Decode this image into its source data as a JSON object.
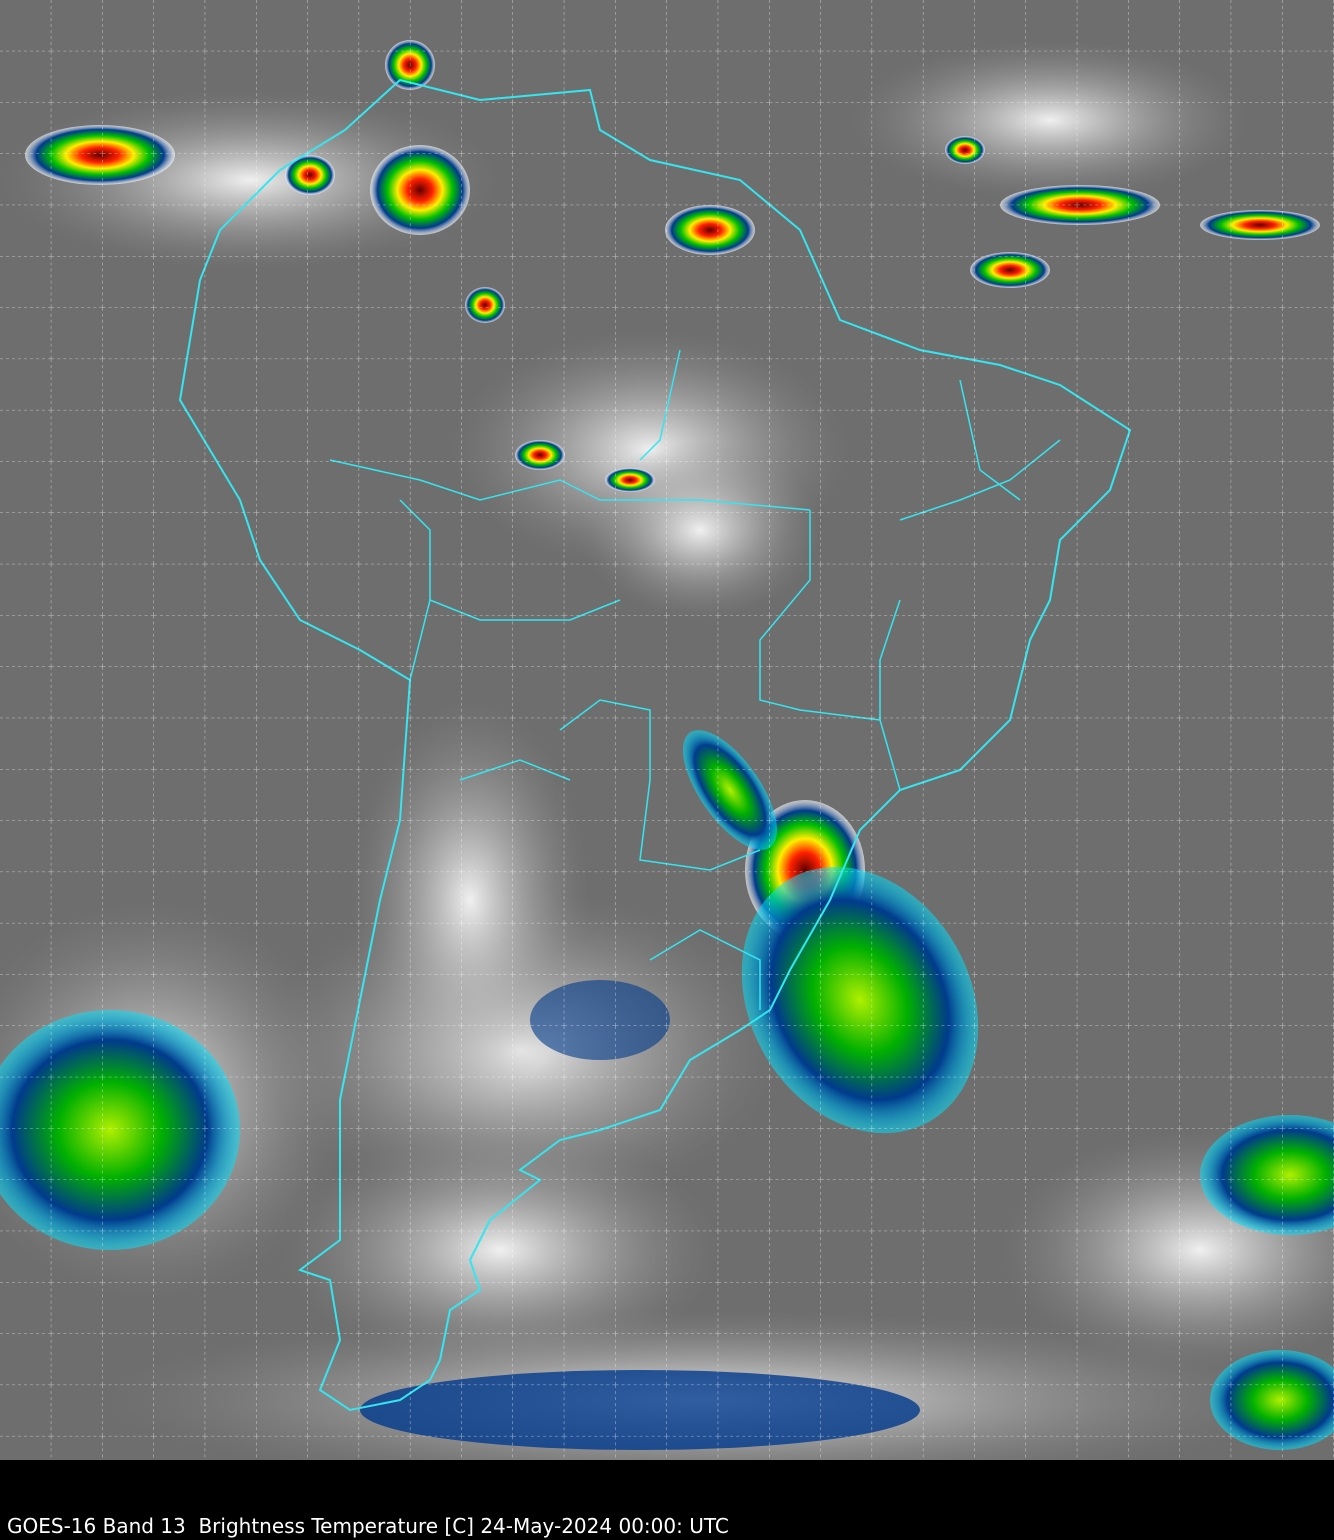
{
  "caption": "GOES-16 Band 13  Brightness Temperature [C] 24-May-2024 00:00: UTC",
  "colors": {
    "background_cloud_free": "#6e6e6e",
    "outline": "#33e6f0",
    "grid": "#ffffff",
    "cold_cloud_scale": [
      "#ffffff",
      "#00e5ff",
      "#003a8c",
      "#00c000",
      "#ffff00",
      "#ff0000",
      "#400000"
    ]
  }
}
